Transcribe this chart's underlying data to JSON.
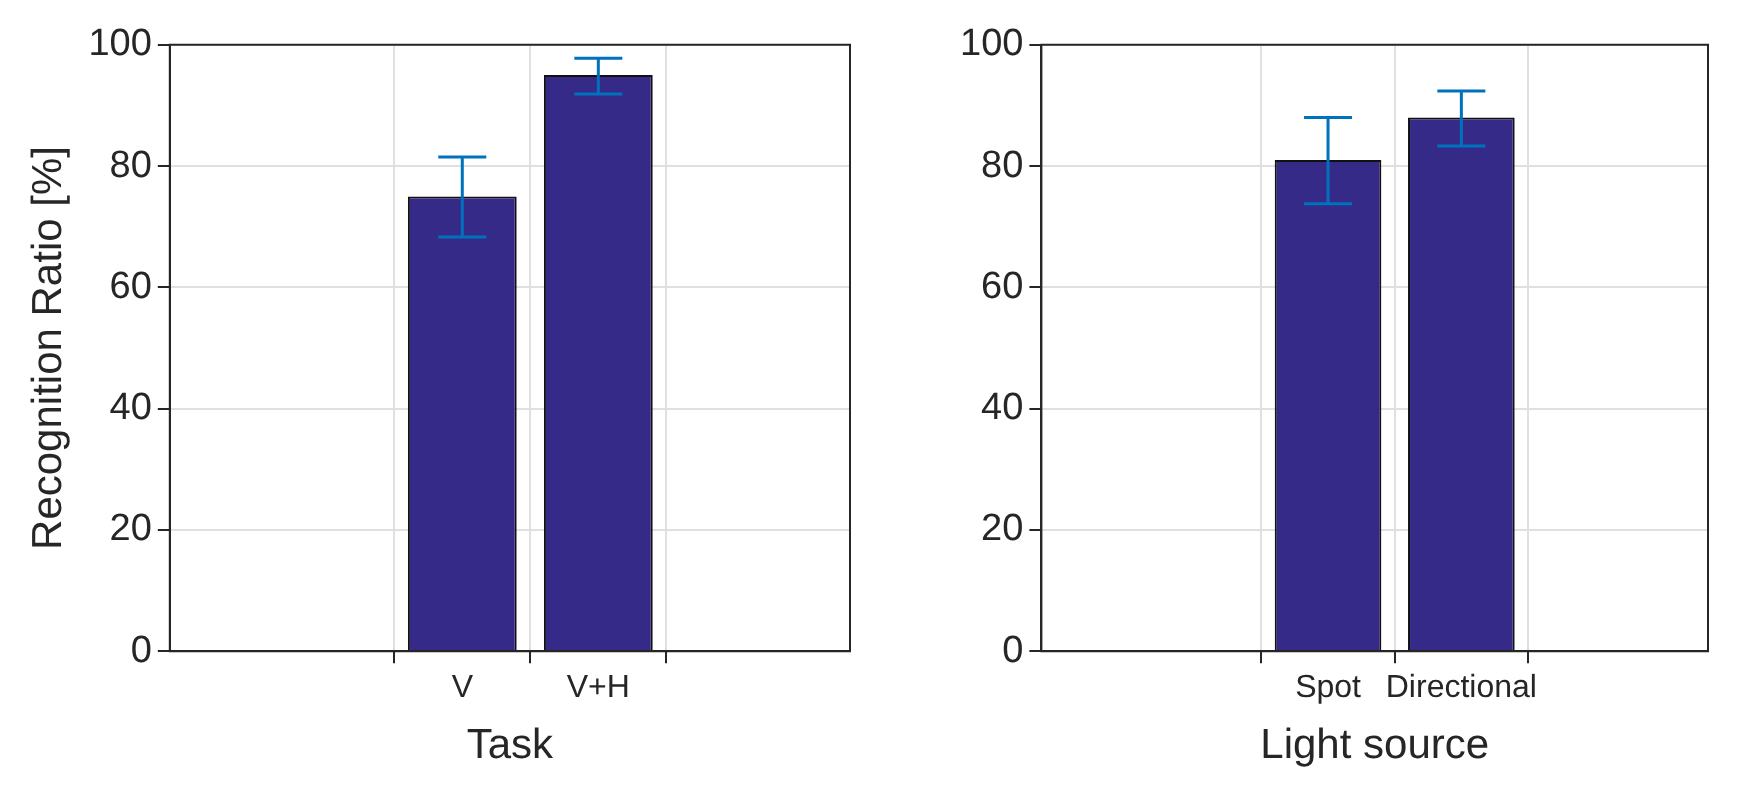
{
  "chart_data": [
    {
      "type": "bar",
      "xlabel": "Task",
      "ylabel": "Recognition Ratio [%]",
      "categories": [
        "V",
        "V+H"
      ],
      "values": [
        75,
        95
      ],
      "errors": [
        [
          68.3,
          81.5
        ],
        [
          91.9,
          97.8
        ]
      ],
      "color": "#352a87",
      "ylim": [
        0,
        100
      ],
      "yticks": [
        0,
        20,
        40,
        60,
        80,
        100
      ],
      "grid": true
    },
    {
      "type": "bar",
      "xlabel": "Light source",
      "categories": [
        "Spot",
        "Directional"
      ],
      "values": [
        81,
        88
      ],
      "errors": [
        [
          73.8,
          88
        ],
        [
          83.3,
          92.4
        ]
      ],
      "color": "#352a87",
      "ylim": [
        0,
        100
      ],
      "yticks": [
        0,
        20,
        40,
        60,
        80,
        100
      ],
      "grid": true
    }
  ]
}
